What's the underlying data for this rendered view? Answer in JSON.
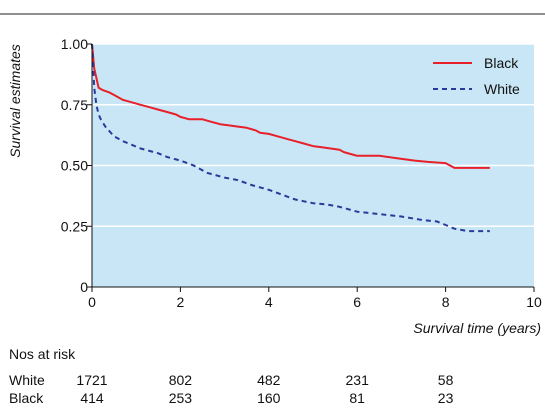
{
  "chart_data": {
    "type": "line",
    "title": "",
    "xlabel": "Survival time (years)",
    "ylabel": "Survival estimates",
    "xlim": [
      0,
      10
    ],
    "ylim": [
      0,
      1
    ],
    "x_ticks": [
      0,
      2,
      4,
      6,
      8,
      10
    ],
    "x_tick_labels": [
      "0",
      "2",
      "4",
      "6",
      "8",
      "10"
    ],
    "y_ticks": [
      0,
      0.25,
      0.5,
      0.75,
      1
    ],
    "y_tick_labels": [
      "0",
      "0.25",
      "0.50",
      "0.75",
      "1.00"
    ],
    "grid": "horizontal",
    "legend_position": "top-right",
    "colors": {
      "plot_background": "#c8e6f5",
      "grid": "#ffffff"
    },
    "series": [
      {
        "name": "Black",
        "color": "#e8202a",
        "line_style": "solid",
        "x": [
          0,
          0.02,
          0.05,
          0.1,
          0.15,
          0.25,
          0.4,
          0.5,
          0.7,
          0.9,
          1.1,
          1.3,
          1.5,
          1.7,
          1.9,
          2.0,
          2.2,
          2.5,
          2.7,
          2.9,
          3.1,
          3.3,
          3.5,
          3.7,
          3.8,
          4.0,
          4.2,
          4.4,
          4.6,
          4.8,
          5.0,
          5.2,
          5.4,
          5.6,
          5.7,
          5.9,
          6.0,
          6.5,
          6.9,
          7.3,
          7.6,
          8.0,
          8.2,
          9.0
        ],
        "y": [
          1.0,
          0.96,
          0.9,
          0.86,
          0.82,
          0.81,
          0.8,
          0.79,
          0.77,
          0.76,
          0.75,
          0.74,
          0.73,
          0.72,
          0.71,
          0.7,
          0.69,
          0.69,
          0.68,
          0.67,
          0.665,
          0.66,
          0.655,
          0.645,
          0.635,
          0.63,
          0.62,
          0.61,
          0.6,
          0.59,
          0.58,
          0.575,
          0.57,
          0.565,
          0.555,
          0.545,
          0.54,
          0.54,
          0.53,
          0.52,
          0.515,
          0.51,
          0.49,
          0.49
        ]
      },
      {
        "name": "White",
        "color": "#2b3a9a",
        "line_style": "dashed",
        "x": [
          0,
          0.02,
          0.05,
          0.1,
          0.15,
          0.2,
          0.3,
          0.4,
          0.5,
          0.7,
          0.9,
          1.1,
          1.3,
          1.5,
          1.7,
          2.0,
          2.3,
          2.6,
          3.0,
          3.3,
          3.6,
          4.0,
          4.3,
          4.6,
          5.0,
          5.3,
          5.6,
          6.0,
          6.5,
          7.0,
          7.5,
          7.8,
          8.0,
          8.2,
          8.5,
          9.0
        ],
        "y": [
          1.0,
          0.93,
          0.82,
          0.75,
          0.71,
          0.69,
          0.66,
          0.64,
          0.62,
          0.6,
          0.585,
          0.57,
          0.56,
          0.55,
          0.535,
          0.52,
          0.5,
          0.47,
          0.45,
          0.44,
          0.42,
          0.4,
          0.38,
          0.36,
          0.345,
          0.34,
          0.33,
          0.31,
          0.3,
          0.29,
          0.275,
          0.27,
          0.255,
          0.24,
          0.23,
          0.23
        ]
      }
    ]
  },
  "risk_table": {
    "title": "Nos at risk",
    "rows": [
      {
        "label": "White",
        "values": [
          "1721",
          "802",
          "482",
          "231",
          "58"
        ]
      },
      {
        "label": "Black",
        "values": [
          "414",
          "253",
          "160",
          "81",
          "23"
        ]
      }
    ]
  }
}
